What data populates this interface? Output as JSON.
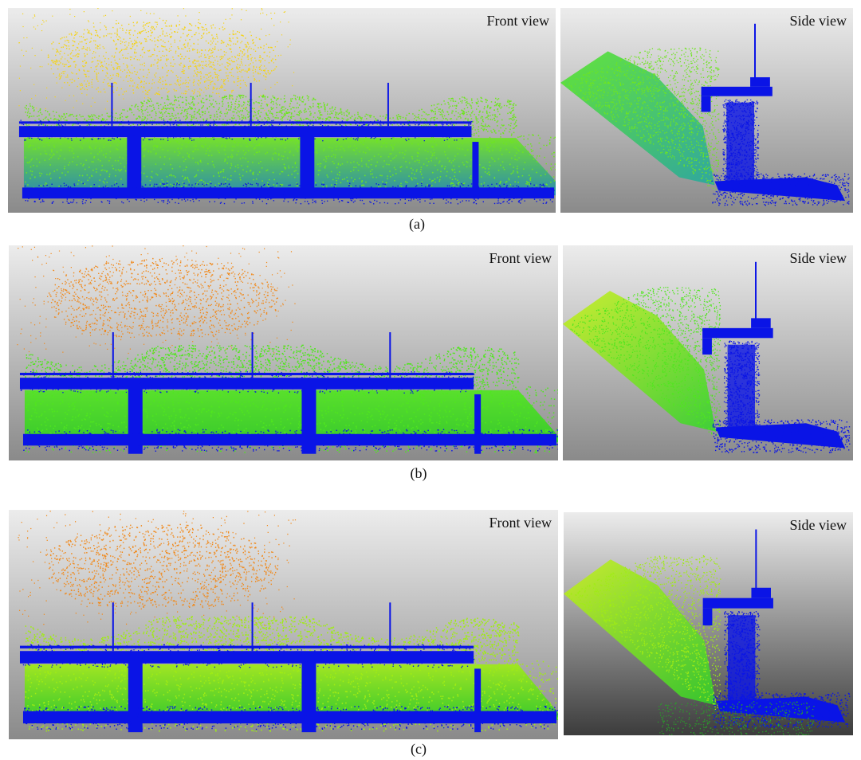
{
  "figure": {
    "panels": [
      {
        "caption": "(a)",
        "front_label": "Front view",
        "side_label": "Side view"
      },
      {
        "caption": "(b)",
        "front_label": "Front view",
        "side_label": "Side view"
      },
      {
        "caption": "(c)",
        "front_label": "Front view",
        "side_label": "Side view"
      }
    ],
    "colors": {
      "structure": "#0a14e6",
      "vegetation": "#3ce614",
      "sky_points_a": "#f5d314",
      "sky_points_bc": "#f08a1e"
    }
  }
}
